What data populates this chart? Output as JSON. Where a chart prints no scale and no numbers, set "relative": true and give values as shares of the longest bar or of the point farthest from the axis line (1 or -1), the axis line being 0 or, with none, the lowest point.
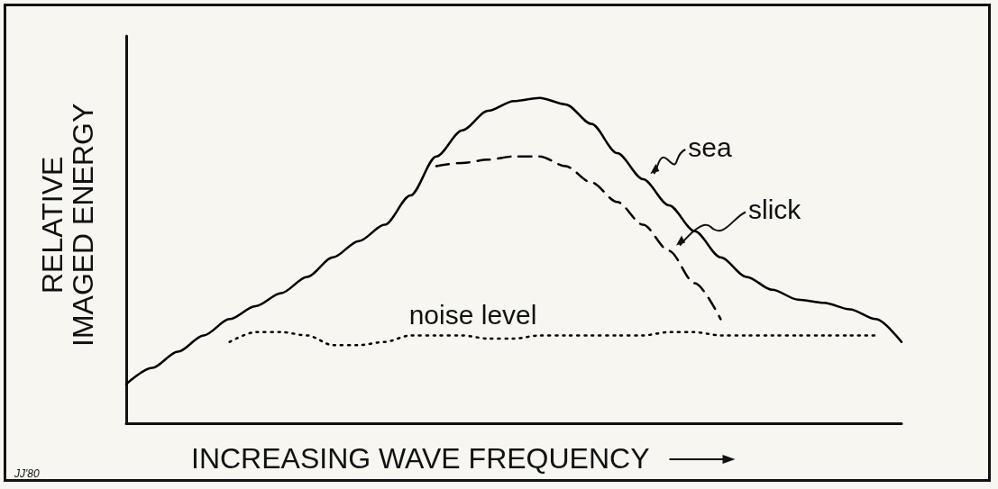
{
  "chart_data": {
    "type": "line",
    "relative": true,
    "xlabel": "INCREASING WAVE FREQUENCY",
    "ylabel": "RELATIVE\nIMAGED ENERGY",
    "annotations": [
      "JJ'80"
    ],
    "grid": false,
    "legend": false,
    "marker": "none",
    "categories": [
      null,
      null,
      null,
      null,
      null,
      null,
      null,
      null,
      null,
      null,
      null,
      null,
      null,
      null,
      null,
      null,
      null,
      null,
      null,
      null,
      null,
      null,
      null,
      null,
      null,
      null,
      null,
      null,
      null,
      null,
      null
    ],
    "series": [
      {
        "name": "sea",
        "color": "#000000",
        "line_style": "solid",
        "values": [
          0.12,
          0.17,
          0.22,
          0.27,
          0.32,
          0.36,
          0.4,
          0.45,
          0.51,
          0.56,
          0.61,
          0.7,
          0.82,
          0.9,
          0.96,
          0.99,
          1,
          0.98,
          0.92,
          0.83,
          0.75,
          0.67,
          0.59,
          0.51,
          0.45,
          0.41,
          0.38,
          0.37,
          0.35,
          0.32,
          0.25
        ]
      },
      {
        "name": "slick",
        "color": "#000000",
        "line_style": "dashed",
        "values": [
          null,
          null,
          null,
          null,
          null,
          null,
          null,
          null,
          null,
          null,
          null,
          null,
          0.79,
          0.8,
          0.81,
          0.82,
          0.82,
          0.79,
          0.74,
          0.68,
          0.61,
          0.53,
          0.43,
          0.32,
          null,
          null,
          null,
          null,
          null,
          null,
          null
        ]
      },
      {
        "name": "noise level",
        "color": "#000000",
        "line_style": "dotted",
        "values": [
          null,
          null,
          null,
          null,
          0.25,
          0.28,
          0.28,
          0.27,
          0.24,
          0.24,
          0.25,
          0.27,
          0.27,
          0.27,
          0.26,
          0.26,
          0.27,
          0.27,
          0.27,
          0.27,
          0.27,
          0.28,
          0.28,
          0.27,
          0.27,
          0.27,
          0.27,
          0.27,
          0.27,
          0.27,
          null
        ]
      }
    ]
  }
}
